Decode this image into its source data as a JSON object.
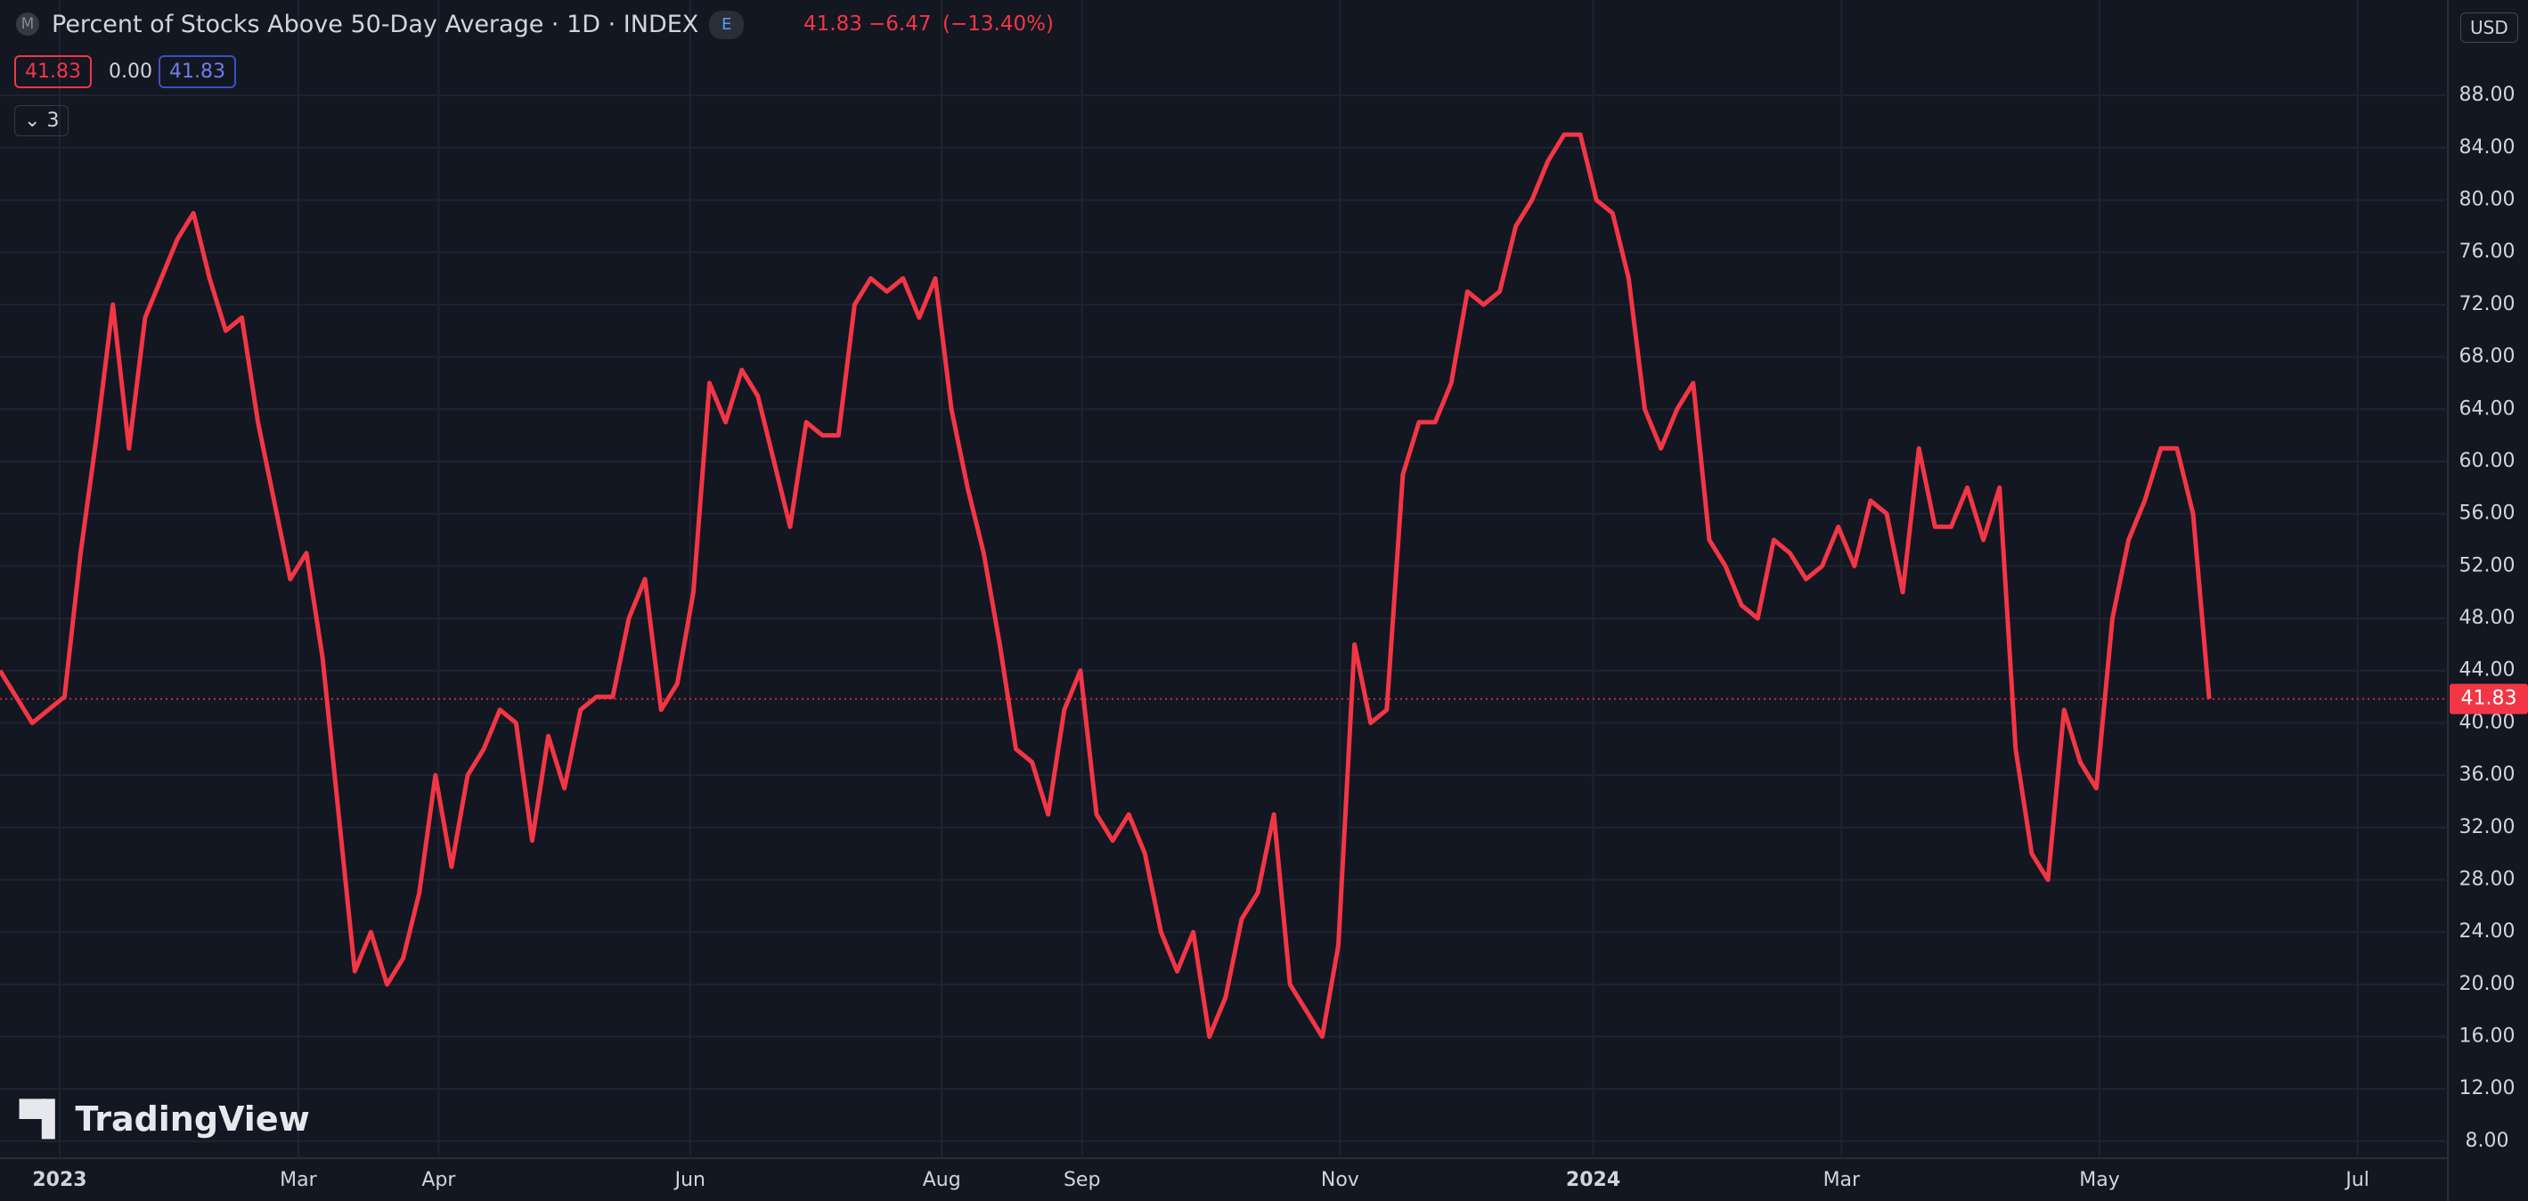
{
  "header": {
    "icon": "M",
    "title": "Percent of Stocks Above 50-Day Average · 1D · INDEX",
    "badge": "E",
    "last": "41.83",
    "change": "−6.47",
    "change_pct": "(−13.40%)",
    "chip_1": "41.83",
    "chip_2": "0.00",
    "chip_3": "41.83",
    "collapse": "3",
    "currency": "USD",
    "logo": "TradingView"
  },
  "chart_data": {
    "type": "line",
    "grid": true,
    "series": [
      {
        "name": "Percent of Stocks Above 50-Day Average",
        "color": "#f23645",
        "values": [
          44,
          42,
          40,
          41,
          42,
          53,
          62,
          72,
          61,
          71,
          74,
          77,
          79,
          74,
          70,
          71,
          63,
          57,
          51,
          53,
          45,
          33,
          21,
          24,
          20,
          22,
          27,
          36,
          29,
          36,
          38,
          41,
          40,
          31,
          39,
          35,
          41,
          42,
          42,
          48,
          51,
          41,
          43,
          50,
          66,
          63,
          67,
          65,
          60,
          55,
          63,
          62,
          62,
          72,
          74,
          73,
          74,
          71,
          74,
          64,
          58,
          53,
          46,
          38,
          37,
          33,
          41,
          44,
          33,
          31,
          33,
          30,
          24,
          21,
          24,
          16,
          19,
          25,
          27,
          33,
          20,
          18,
          16,
          23,
          46,
          40,
          41,
          59,
          63,
          63,
          66,
          73,
          72,
          73,
          78,
          80,
          83,
          85,
          85,
          80,
          79,
          74,
          64,
          61,
          64,
          66,
          54,
          52,
          49,
          48,
          54,
          53,
          51,
          52,
          55,
          52,
          57,
          56,
          50,
          61,
          55,
          55,
          58,
          54,
          58,
          38,
          30,
          28,
          41,
          37,
          35,
          48,
          54,
          57,
          61,
          61,
          56,
          41.83
        ]
      }
    ],
    "xlim": [
      0,
      151.8
    ],
    "xticks": [
      {
        "value": 3.7,
        "label": "2023"
      },
      {
        "value": 18.5,
        "label": "Mar"
      },
      {
        "value": 27.2,
        "label": "Apr"
      },
      {
        "value": 42.8,
        "label": "Jun"
      },
      {
        "value": 58.4,
        "label": "Aug"
      },
      {
        "value": 67.1,
        "label": "Sep"
      },
      {
        "value": 83.1,
        "label": "Nov"
      },
      {
        "value": 98.8,
        "label": "2024"
      },
      {
        "value": 114.2,
        "label": "Mar"
      },
      {
        "value": 130.2,
        "label": "May"
      },
      {
        "value": 146.2,
        "label": "Jul"
      }
    ],
    "ylim": [
      6.7,
      95.3
    ],
    "yticks": [
      {
        "value": 8,
        "label": "8.00"
      },
      {
        "value": 12,
        "label": "12.00"
      },
      {
        "value": 16,
        "label": "16.00"
      },
      {
        "value": 20,
        "label": "20.00"
      },
      {
        "value": 24,
        "label": "24.00"
      },
      {
        "value": 28,
        "label": "28.00"
      },
      {
        "value": 32,
        "label": "32.00"
      },
      {
        "value": 36,
        "label": "36.00"
      },
      {
        "value": 40,
        "label": "40.00"
      },
      {
        "value": 44,
        "label": "44.00"
      },
      {
        "value": 48,
        "label": "48.00"
      },
      {
        "value": 52,
        "label": "52.00"
      },
      {
        "value": 56,
        "label": "56.00"
      },
      {
        "value": 60,
        "label": "60.00"
      },
      {
        "value": 64,
        "label": "64.00"
      },
      {
        "value": 68,
        "label": "68.00"
      },
      {
        "value": 72,
        "label": "72.00"
      },
      {
        "value": 76,
        "label": "76.00"
      },
      {
        "value": 80,
        "label": "80.00"
      },
      {
        "value": 84,
        "label": "84.00"
      },
      {
        "value": 88,
        "label": "88.00"
      }
    ]
  }
}
